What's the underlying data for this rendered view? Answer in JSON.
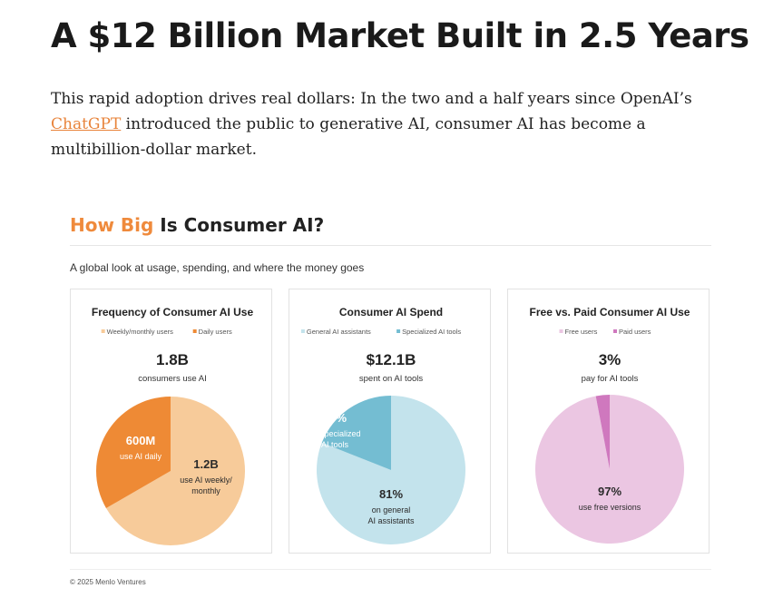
{
  "article": {
    "headline": "A $12 Billion Market Built in 2.5 Years",
    "intro_before": "This rapid adoption drives real dollars: In the two and a half years since OpenAI’s ",
    "intro_link": "ChatGPT",
    "intro_after": " introduced the public to generative AI, consumer AI has become a multibillion-dollar market."
  },
  "infographic": {
    "title_accent": "How Big",
    "title_rest": " Is Consumer AI?",
    "subtitle": "A global look at usage, spending, and where the money goes",
    "credit": "© 2025 Menlo Ventures"
  },
  "colors": {
    "accent": "#ef8a3c",
    "link": "#e8833a"
  },
  "chart_data": [
    {
      "type": "pie",
      "title": "Frequency of Consumer AI Use",
      "legend": [
        "Weekly/monthly users",
        "Daily users"
      ],
      "headline_value": "1.8B",
      "headline_caption": "consumers use AI",
      "slices": [
        {
          "name": "Weekly/monthly users",
          "value": 1.2,
          "color": "#f7cb9a",
          "label_value": "1.2B",
          "label_caption": [
            "use AI weekly/",
            "monthly"
          ]
        },
        {
          "name": "Daily users",
          "value": 0.6,
          "color": "#ee8a35",
          "label_value": "600M",
          "label_caption": [
            "use AI daily"
          ]
        }
      ]
    },
    {
      "type": "pie",
      "title": "Consumer AI Spend",
      "legend": [
        "General AI assistants",
        "Specialized AI tools"
      ],
      "headline_value": "$12.1B",
      "headline_caption": "spent on AI tools",
      "slices": [
        {
          "name": "General AI assistants",
          "value": 81,
          "color": "#c3e3ec",
          "label_value": "81%",
          "label_caption": [
            "on general",
            "AI assistants"
          ]
        },
        {
          "name": "Specialized AI tools",
          "value": 19,
          "color": "#74bdd2",
          "label_value": "19%",
          "label_caption": [
            "on specialized",
            "AI tools"
          ]
        }
      ]
    },
    {
      "type": "pie",
      "title": "Free vs. Paid Consumer AI Use",
      "legend": [
        "Free users",
        "Paid users"
      ],
      "headline_value": "3%",
      "headline_caption": "pay for AI tools",
      "slices": [
        {
          "name": "Free users",
          "value": 97,
          "color": "#ebc6e2",
          "label_value": "97%",
          "label_caption": [
            "use free versions"
          ]
        },
        {
          "name": "Paid users",
          "value": 3,
          "color": "#cf78be",
          "label_value": "",
          "label_caption": []
        }
      ]
    }
  ]
}
